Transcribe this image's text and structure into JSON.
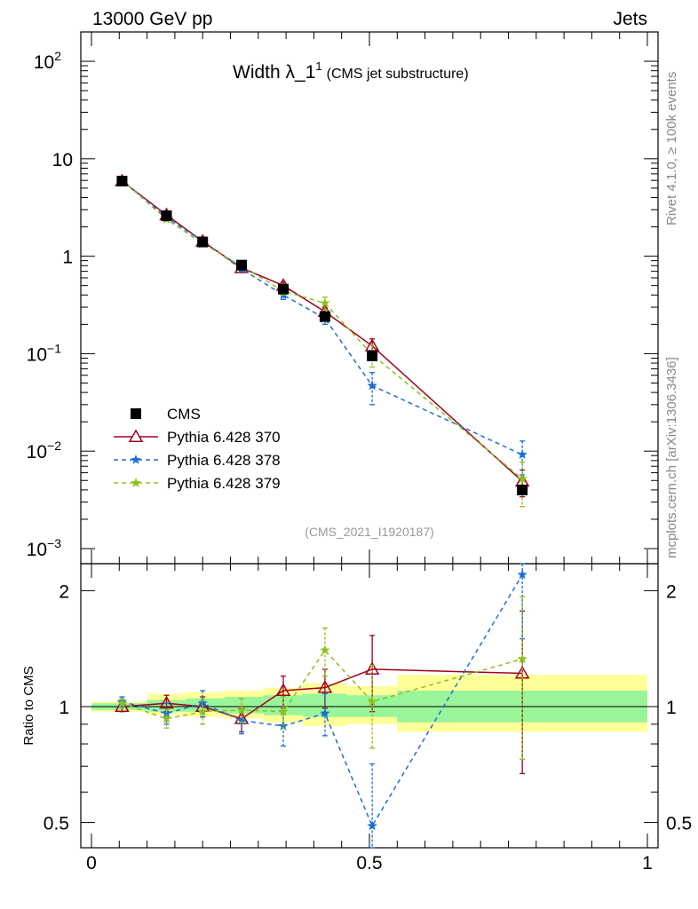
{
  "header": {
    "left": "13000 GeV pp",
    "right": "Jets"
  },
  "side_labels": {
    "rivet": "Rivet 4.1.0, ≥ 100k events",
    "mcplots": "mcplots.cern.ch [arXiv:1306.3436]"
  },
  "title": {
    "main": "Width λ_1",
    "sup": "1",
    "sub": "(CMS jet substructure)"
  },
  "analysis_id": "(CMS_2021_I1920187)",
  "colors": {
    "cms": "#000000",
    "p370": "#a00020",
    "p378": "#1a6fd6",
    "p379": "#8cc01c",
    "band_inner": "#99f599",
    "band_outer": "#ffff99"
  },
  "chart_data": [
    {
      "type": "scatter",
      "panel": "main",
      "yscale": "log",
      "xlim": [
        0,
        1
      ],
      "ylim": [
        0.0007,
        200
      ],
      "y_ticks": [
        {
          "value": 100,
          "base": "10",
          "exp": "2"
        },
        {
          "value": 10,
          "base": "10",
          "exp": ""
        },
        {
          "value": 1,
          "base": "1",
          "exp": ""
        },
        {
          "value": 0.1,
          "base": "10",
          "exp": "−1"
        },
        {
          "value": 0.01,
          "base": "10",
          "exp": "−2"
        },
        {
          "value": 0.001,
          "base": "10",
          "exp": "−3"
        }
      ],
      "legend": [
        "CMS",
        "Pythia 6.428 370",
        "Pythia 6.428 378",
        "Pythia 6.428 379"
      ],
      "series": [
        {
          "name": "CMS",
          "key": "cms",
          "style": "data",
          "x": [
            0.055,
            0.135,
            0.2,
            0.27,
            0.345,
            0.42,
            0.505,
            0.775
          ],
          "y": [
            5.9,
            2.6,
            1.4,
            0.81,
            0.46,
            0.24,
            0.095,
            0.004
          ]
        },
        {
          "name": "Pythia 6.428 370",
          "key": "p370",
          "style": "solid",
          "marker": "triangle",
          "x": [
            0.055,
            0.135,
            0.2,
            0.27,
            0.345,
            0.42,
            0.505,
            0.775
          ],
          "y": [
            5.9,
            2.65,
            1.42,
            0.76,
            0.5,
            0.27,
            0.12,
            0.0049
          ],
          "err": [
            0.2,
            0.1,
            0.06,
            0.04,
            0.04,
            0.025,
            0.022,
            0.0015
          ]
        },
        {
          "name": "Pythia 6.428 378",
          "key": "p378",
          "style": "dashed",
          "marker": "star",
          "x": [
            0.055,
            0.135,
            0.2,
            0.27,
            0.345,
            0.42,
            0.505,
            0.775
          ],
          "y": [
            6.0,
            2.5,
            1.42,
            0.74,
            0.4,
            0.23,
            0.047,
            0.0092
          ],
          "err": [
            0.2,
            0.1,
            0.08,
            0.04,
            0.04,
            0.03,
            0.017,
            0.0035
          ]
        },
        {
          "name": "Pythia 6.428 379",
          "key": "p379",
          "style": "dashed",
          "marker": "star",
          "x": [
            0.055,
            0.135,
            0.2,
            0.27,
            0.345,
            0.42,
            0.505,
            0.775
          ],
          "y": [
            6.0,
            2.4,
            1.35,
            0.79,
            0.44,
            0.33,
            0.098,
            0.0052
          ],
          "err": [
            0.2,
            0.12,
            0.08,
            0.05,
            0.04,
            0.05,
            0.025,
            0.0025
          ]
        }
      ]
    },
    {
      "type": "scatter",
      "panel": "ratio",
      "ylabel": "Ratio to CMS",
      "yscale": "log",
      "xlim": [
        0,
        1
      ],
      "ylim": [
        0.43,
        2.35
      ],
      "x_ticks": [
        {
          "value": 0,
          "label": "0"
        },
        {
          "value": 0.5,
          "label": "0.5"
        },
        {
          "value": 1,
          "label": "1"
        }
      ],
      "y_ticks": [
        {
          "value": 2,
          "label": "2"
        },
        {
          "value": 1,
          "label": "1"
        },
        {
          "value": 0.5,
          "label": "0.5"
        }
      ],
      "bands": {
        "edges": [
          0,
          0.1,
          0.17,
          0.24,
          0.31,
          0.38,
          0.46,
          0.55,
          1.0
        ],
        "inner": [
          [
            0.98,
            1.02
          ],
          [
            0.97,
            1.04
          ],
          [
            0.97,
            1.05
          ],
          [
            0.96,
            1.06
          ],
          [
            0.95,
            1.07
          ],
          [
            0.94,
            1.08
          ],
          [
            0.94,
            1.07
          ],
          [
            0.91,
            1.1
          ]
        ],
        "outer": [
          [
            0.97,
            1.03
          ],
          [
            0.95,
            1.08
          ],
          [
            0.94,
            1.09
          ],
          [
            0.93,
            1.1
          ],
          [
            0.91,
            1.12
          ],
          [
            0.89,
            1.15
          ],
          [
            0.9,
            1.13
          ],
          [
            0.86,
            1.21
          ]
        ]
      },
      "series": [
        {
          "name": "Pythia 6.428 370",
          "key": "p370",
          "style": "solid",
          "marker": "triangle",
          "x": [
            0.055,
            0.135,
            0.2,
            0.27,
            0.345,
            0.42,
            0.505,
            0.775
          ],
          "y": [
            1.0,
            1.02,
            1.0,
            0.93,
            1.1,
            1.12,
            1.25,
            1.22
          ],
          "err": [
            0.03,
            0.05,
            0.06,
            0.07,
            0.1,
            0.13,
            0.28,
            0.55
          ]
        },
        {
          "name": "Pythia 6.428 378",
          "key": "p378",
          "style": "dashed",
          "marker": "star",
          "x": [
            0.055,
            0.135,
            0.2,
            0.27,
            0.345,
            0.42,
            0.505,
            0.775
          ],
          "y": [
            1.03,
            0.96,
            1.02,
            0.92,
            0.89,
            0.96,
            0.49,
            2.2
          ],
          "err": [
            0.03,
            0.06,
            0.08,
            0.07,
            0.1,
            0.12,
            0.22,
            0.7
          ]
        },
        {
          "name": "Pythia 6.428 379",
          "key": "p379",
          "style": "dashed",
          "marker": "star",
          "x": [
            0.055,
            0.135,
            0.2,
            0.27,
            0.345,
            0.42,
            0.505,
            0.775
          ],
          "y": [
            1.02,
            0.93,
            0.97,
            0.98,
            0.97,
            1.4,
            1.03,
            1.33
          ],
          "err": [
            0.03,
            0.05,
            0.07,
            0.07,
            0.09,
            0.2,
            0.25,
            0.6
          ]
        }
      ]
    }
  ]
}
